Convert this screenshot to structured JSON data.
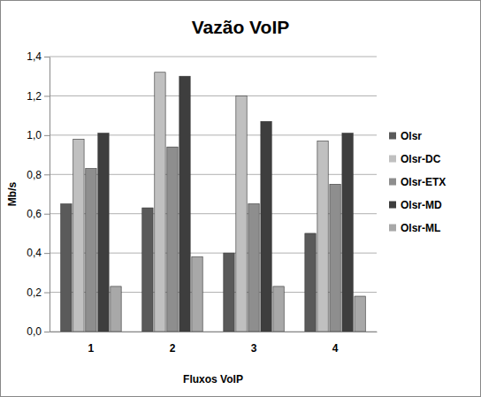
{
  "chart_data": {
    "type": "bar",
    "title": "Vazão VoIP",
    "x_label": "Fluxos VoIP",
    "y_label": "Mb/s",
    "categories": [
      "1",
      "2",
      "3",
      "4"
    ],
    "series": [
      {
        "name": "Olsr",
        "color": "#5a5a5a",
        "values": [
          0.65,
          0.63,
          0.4,
          0.5
        ]
      },
      {
        "name": "Olsr-DC",
        "color": "#c0c0c0",
        "values": [
          0.98,
          1.32,
          1.2,
          0.97
        ]
      },
      {
        "name": "Olsr-ETX",
        "color": "#8e8e8e",
        "values": [
          0.83,
          0.94,
          0.65,
          0.75
        ]
      },
      {
        "name": "Olsr-MD",
        "color": "#3e3e3e",
        "values": [
          1.01,
          1.3,
          1.07,
          1.01
        ]
      },
      {
        "name": "Olsr-ML",
        "color": "#a8a8a8",
        "values": [
          0.23,
          0.38,
          0.23,
          0.18
        ]
      }
    ],
    "ylim": [
      0,
      1.4
    ],
    "yticks": [
      {
        "value": 0,
        "label": "0,0"
      },
      {
        "value": 0.2,
        "label": "0,2"
      },
      {
        "value": 0.4,
        "label": "0,4"
      },
      {
        "value": 0.6,
        "label": "0,6"
      },
      {
        "value": 0.8,
        "label": "0,8"
      },
      {
        "value": 1.0,
        "label": "1,0"
      },
      {
        "value": 1.2,
        "label": "1,2"
      },
      {
        "value": 1.4,
        "label": "1,4"
      }
    ],
    "grid": true,
    "legend": "right"
  }
}
